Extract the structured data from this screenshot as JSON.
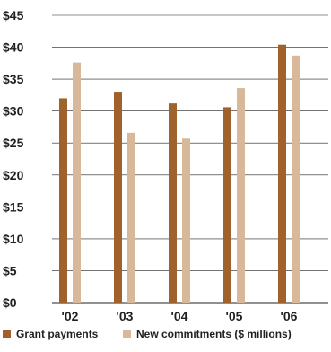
{
  "chart_data": {
    "type": "bar",
    "categories": [
      "'02",
      "'03",
      "'04",
      "'05",
      "'06"
    ],
    "series": [
      {
        "name": "Grant payments",
        "color": "#a0622d",
        "values": [
          32.0,
          32.9,
          31.2,
          30.6,
          40.4
        ]
      },
      {
        "name": "New commitments ($ millions)",
        "color": "#d7b99a",
        "values": [
          37.6,
          26.6,
          25.7,
          33.6,
          38.7
        ]
      }
    ],
    "y_ticks": [
      "$0",
      "$5",
      "$10",
      "$15",
      "$20",
      "$25",
      "$30",
      "$35",
      "$40",
      "$45"
    ],
    "ylim": [
      0,
      45
    ],
    "grid": true,
    "legend_position": "bottom-left"
  }
}
